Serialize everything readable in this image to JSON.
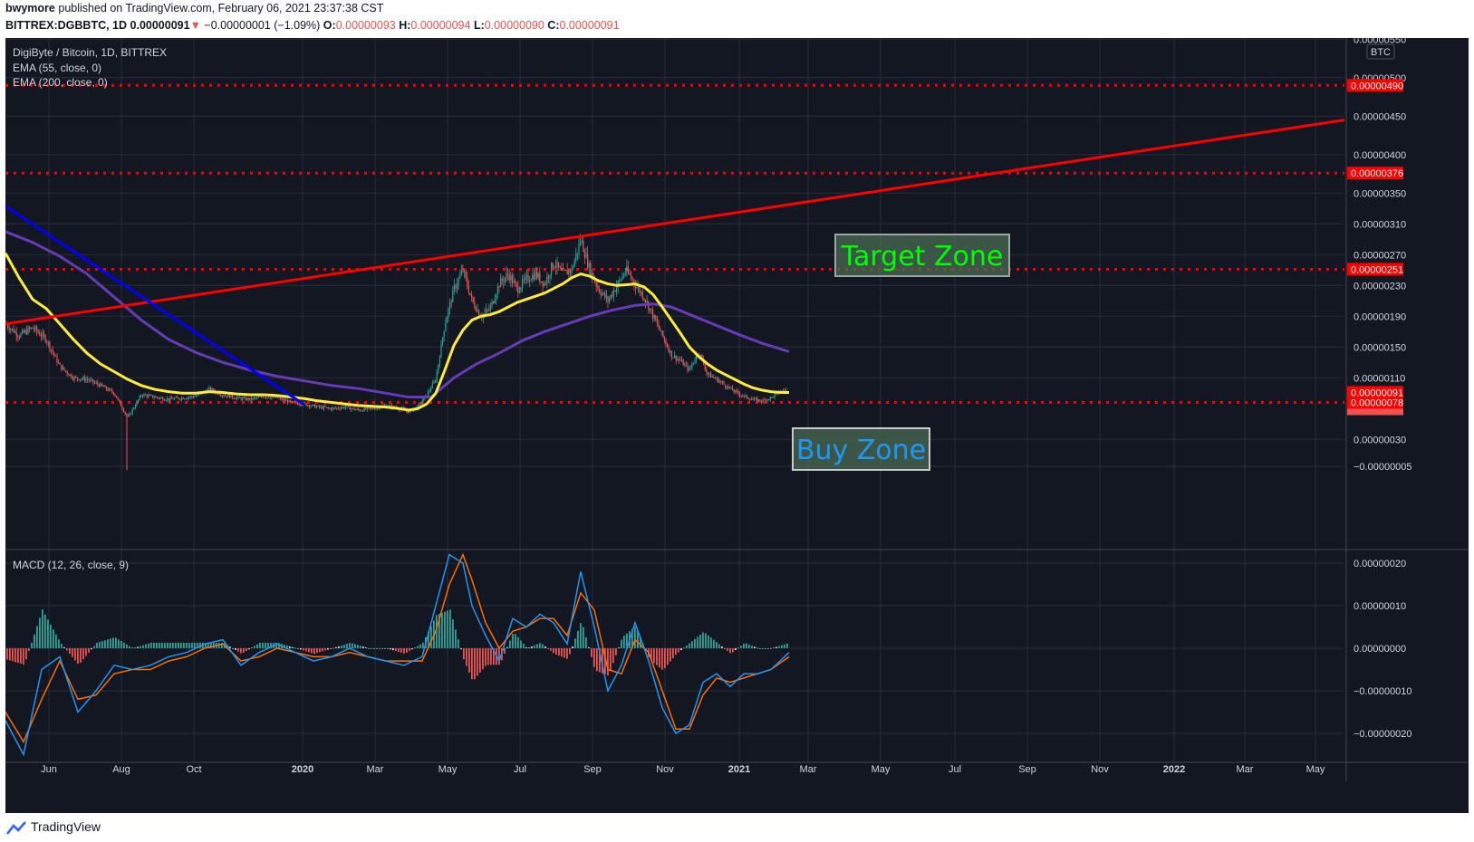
{
  "header": {
    "author": "bwymore",
    "published_text": " published on TradingView.com, February 06, 2021 23:37:38 CST",
    "symbol": "BITTREX:DGBBTC, 1D",
    "last": "0.00000091",
    "change": "−0.00000001 (−1.09%)",
    "o_label": "O:",
    "o_value": "0.00000093",
    "h_label": "H:",
    "h_value": "0.00000094",
    "l_label": "L:",
    "l_value": "0.00000090",
    "c_label": "C:",
    "c_value": "0.00000091"
  },
  "legend": {
    "title": "DigiByte / Bitcoin, 1D, BITTREX",
    "ema55": "EMA (55, close, 0)",
    "ema200": "EMA (200, close, 0)",
    "macd": "MACD (12, 26, close, 9)",
    "currency": "BTC"
  },
  "footer": {
    "brand": "TradingView"
  },
  "colors": {
    "background": "#131722",
    "grid": "#2a2e39",
    "up": "#26a69a",
    "down": "#ef5350",
    "ema55": "#ffeb3b",
    "ema200": "#673ab7",
    "trend_red": "#ff0000",
    "trend_blue": "#0000ff",
    "macd_line": "#2196f3",
    "signal_line": "#ff6d00",
    "target_text": "#00ff00",
    "buy_text": "#2196f3"
  },
  "chart_data": {
    "type": "candlestick",
    "price_axis_ticks": [
      "0.00000550",
      "0.00000500",
      "0.00000450",
      "0.00000400",
      "0.00000350",
      "0.00000310",
      "0.00000270",
      "0.00000230",
      "0.00000190",
      "0.00000150",
      "0.00000110",
      "0.00000030",
      "−0.00000005"
    ],
    "price_axis_top_partial": "0.00",
    "macd_axis_ticks": [
      "0.00000020",
      "0.00000010",
      "0.00000000",
      "−0.00000010",
      "−0.00000020"
    ],
    "time_axis_ticks": [
      "Jun",
      "Aug",
      "Oct",
      "2020",
      "Mar",
      "May",
      "Jul",
      "Sep",
      "Nov",
      "2021",
      "Mar",
      "May",
      "Jul",
      "Sep",
      "Nov",
      "2022",
      "Mar",
      "May"
    ],
    "horizontal_levels": [
      {
        "label": "0.00000490",
        "value": 490
      },
      {
        "label": "0.00000376",
        "value": 376
      },
      {
        "label": "0.00000251",
        "value": 251
      },
      {
        "label": "0.00000078",
        "value": 78
      }
    ],
    "last_price_label": "0.00000091",
    "annotations": [
      {
        "text": "Target Zone"
      },
      {
        "text": "Buy Zone"
      }
    ],
    "price_path_x_y": [
      [
        0,
        180
      ],
      [
        15,
        165
      ],
      [
        30,
        175
      ],
      [
        45,
        160
      ],
      [
        60,
        125
      ],
      [
        75,
        110
      ],
      [
        90,
        108
      ],
      [
        105,
        100
      ],
      [
        120,
        90
      ],
      [
        135,
        58
      ],
      [
        150,
        88
      ],
      [
        165,
        85
      ],
      [
        180,
        82
      ],
      [
        195,
        84
      ],
      [
        210,
        86
      ],
      [
        225,
        95
      ],
      [
        240,
        88
      ],
      [
        255,
        84
      ],
      [
        270,
        82
      ],
      [
        285,
        86
      ],
      [
        300,
        84
      ],
      [
        315,
        78
      ],
      [
        330,
        76
      ],
      [
        345,
        72
      ],
      [
        360,
        70
      ],
      [
        375,
        72
      ],
      [
        390,
        68
      ],
      [
        405,
        70
      ],
      [
        420,
        74
      ],
      [
        435,
        70
      ],
      [
        445,
        66
      ],
      [
        455,
        72
      ],
      [
        465,
        88
      ],
      [
        475,
        108
      ],
      [
        485,
        180
      ],
      [
        495,
        225
      ],
      [
        505,
        250
      ],
      [
        515,
        210
      ],
      [
        525,
        190
      ],
      [
        535,
        200
      ],
      [
        545,
        232
      ],
      [
        555,
        245
      ],
      [
        565,
        225
      ],
      [
        575,
        238
      ],
      [
        585,
        245
      ],
      [
        595,
        232
      ],
      [
        605,
        260
      ],
      [
        615,
        245
      ],
      [
        625,
        250
      ],
      [
        635,
        290
      ],
      [
        645,
        250
      ],
      [
        655,
        225
      ],
      [
        665,
        210
      ],
      [
        675,
        230
      ],
      [
        685,
        250
      ],
      [
        695,
        232
      ],
      [
        705,
        215
      ],
      [
        715,
        190
      ],
      [
        725,
        165
      ],
      [
        735,
        140
      ],
      [
        745,
        132
      ],
      [
        755,
        120
      ],
      [
        765,
        145
      ],
      [
        775,
        115
      ],
      [
        785,
        108
      ],
      [
        795,
        100
      ],
      [
        805,
        92
      ],
      [
        815,
        86
      ],
      [
        825,
        82
      ],
      [
        835,
        80
      ],
      [
        845,
        84
      ],
      [
        855,
        92
      ],
      [
        865,
        94
      ]
    ],
    "ema55_x_y": [
      [
        0,
        272
      ],
      [
        15,
        240
      ],
      [
        30,
        212
      ],
      [
        45,
        200
      ],
      [
        60,
        180
      ],
      [
        75,
        160
      ],
      [
        90,
        142
      ],
      [
        105,
        128
      ],
      [
        120,
        118
      ],
      [
        135,
        108
      ],
      [
        150,
        100
      ],
      [
        165,
        95
      ],
      [
        180,
        92
      ],
      [
        195,
        90
      ],
      [
        210,
        90
      ],
      [
        225,
        92
      ],
      [
        240,
        91
      ],
      [
        255,
        89
      ],
      [
        270,
        88
      ],
      [
        285,
        88
      ],
      [
        300,
        87
      ],
      [
        315,
        85
      ],
      [
        330,
        83
      ],
      [
        345,
        80
      ],
      [
        360,
        78
      ],
      [
        375,
        76
      ],
      [
        390,
        74
      ],
      [
        405,
        73
      ],
      [
        420,
        72
      ],
      [
        435,
        70
      ],
      [
        445,
        68
      ],
      [
        455,
        70
      ],
      [
        465,
        76
      ],
      [
        475,
        90
      ],
      [
        485,
        120
      ],
      [
        495,
        152
      ],
      [
        505,
        172
      ],
      [
        515,
        185
      ],
      [
        525,
        190
      ],
      [
        535,
        192
      ],
      [
        545,
        196
      ],
      [
        555,
        202
      ],
      [
        565,
        208
      ],
      [
        575,
        212
      ],
      [
        585,
        216
      ],
      [
        595,
        220
      ],
      [
        605,
        226
      ],
      [
        615,
        232
      ],
      [
        625,
        240
      ],
      [
        635,
        245
      ],
      [
        645,
        242
      ],
      [
        655,
        236
      ],
      [
        665,
        232
      ],
      [
        675,
        230
      ],
      [
        685,
        231
      ],
      [
        695,
        232
      ],
      [
        705,
        228
      ],
      [
        715,
        218
      ],
      [
        725,
        202
      ],
      [
        735,
        185
      ],
      [
        745,
        168
      ],
      [
        755,
        150
      ],
      [
        765,
        138
      ],
      [
        775,
        128
      ],
      [
        785,
        120
      ],
      [
        795,
        114
      ],
      [
        805,
        108
      ],
      [
        815,
        102
      ],
      [
        825,
        97
      ],
      [
        835,
        94
      ],
      [
        845,
        92
      ],
      [
        855,
        91
      ],
      [
        865,
        91
      ]
    ],
    "ema200_x_y": [
      [
        0,
        300
      ],
      [
        30,
        286
      ],
      [
        60,
        268
      ],
      [
        90,
        245
      ],
      [
        120,
        215
      ],
      [
        150,
        185
      ],
      [
        180,
        160
      ],
      [
        210,
        143
      ],
      [
        240,
        130
      ],
      [
        270,
        120
      ],
      [
        300,
        112
      ],
      [
        330,
        106
      ],
      [
        360,
        100
      ],
      [
        390,
        96
      ],
      [
        420,
        90
      ],
      [
        445,
        85
      ],
      [
        470,
        85
      ],
      [
        495,
        110
      ],
      [
        520,
        128
      ],
      [
        545,
        142
      ],
      [
        570,
        158
      ],
      [
        595,
        170
      ],
      [
        620,
        180
      ],
      [
        645,
        190
      ],
      [
        670,
        198
      ],
      [
        695,
        204
      ],
      [
        715,
        206
      ],
      [
        735,
        202
      ],
      [
        760,
        190
      ],
      [
        785,
        178
      ],
      [
        810,
        166
      ],
      [
        835,
        155
      ],
      [
        865,
        144
      ]
    ],
    "macd_x_y": [
      [
        0,
        -1.7e-07
      ],
      [
        20,
        -2.5e-07
      ],
      [
        40,
        -5e-08
      ],
      [
        60,
        -2e-08
      ],
      [
        80,
        -1.5e-07
      ],
      [
        100,
        -1e-07
      ],
      [
        120,
        -4e-08
      ],
      [
        140,
        -5e-08
      ],
      [
        160,
        -4e-08
      ],
      [
        180,
        -2e-08
      ],
      [
        200,
        -1e-08
      ],
      [
        220,
        1e-08
      ],
      [
        240,
        2e-08
      ],
      [
        260,
        -4e-08
      ],
      [
        280,
        -1e-08
      ],
      [
        300,
        1e-08
      ],
      [
        320,
        -1e-08
      ],
      [
        340,
        -3e-08
      ],
      [
        360,
        -2e-08
      ],
      [
        380,
        0.0
      ],
      [
        400,
        -2e-08
      ],
      [
        420,
        -3e-08
      ],
      [
        440,
        -4e-08
      ],
      [
        460,
        -2e-08
      ],
      [
        475,
        1e-07
      ],
      [
        490,
        2.2e-07
      ],
      [
        505,
        2e-07
      ],
      [
        515,
        1e-07
      ],
      [
        530,
        3e-08
      ],
      [
        545,
        -3e-08
      ],
      [
        560,
        7e-08
      ],
      [
        575,
        5e-08
      ],
      [
        590,
        8e-08
      ],
      [
        605,
        6e-08
      ],
      [
        620,
        1e-08
      ],
      [
        635,
        1.8e-07
      ],
      [
        650,
        5e-08
      ],
      [
        665,
        -1e-07
      ],
      [
        680,
        -4e-08
      ],
      [
        695,
        6e-08
      ],
      [
        710,
        -3e-08
      ],
      [
        725,
        -1.4e-07
      ],
      [
        740,
        -2e-07
      ],
      [
        755,
        -1.8e-07
      ],
      [
        770,
        -8e-08
      ],
      [
        785,
        -6e-08
      ],
      [
        800,
        -9e-08
      ],
      [
        815,
        -6e-08
      ],
      [
        830,
        -6e-08
      ],
      [
        845,
        -5e-08
      ],
      [
        865,
        -1e-08
      ]
    ],
    "signal_x_y": [
      [
        0,
        -1.5e-07
      ],
      [
        20,
        -2.2e-07
      ],
      [
        40,
        -1.2e-07
      ],
      [
        60,
        -3e-08
      ],
      [
        80,
        -1.2e-07
      ],
      [
        100,
        -1.1e-07
      ],
      [
        120,
        -6e-08
      ],
      [
        140,
        -5e-08
      ],
      [
        160,
        -5e-08
      ],
      [
        180,
        -3e-08
      ],
      [
        200,
        -2e-08
      ],
      [
        220,
        0.0
      ],
      [
        240,
        1e-08
      ],
      [
        260,
        -3e-08
      ],
      [
        280,
        -2e-08
      ],
      [
        300,
        0.0
      ],
      [
        320,
        -1e-08
      ],
      [
        340,
        -2e-08
      ],
      [
        360,
        -2e-08
      ],
      [
        380,
        -1e-08
      ],
      [
        400,
        -2e-08
      ],
      [
        420,
        -3e-08
      ],
      [
        440,
        -3e-08
      ],
      [
        460,
        -3e-08
      ],
      [
        475,
        4e-08
      ],
      [
        490,
        1.5e-07
      ],
      [
        505,
        2.2e-07
      ],
      [
        515,
        1.6e-07
      ],
      [
        530,
        6e-08
      ],
      [
        545,
        0.0
      ],
      [
        560,
        4e-08
      ],
      [
        575,
        5e-08
      ],
      [
        590,
        7e-08
      ],
      [
        605,
        7e-08
      ],
      [
        620,
        3e-08
      ],
      [
        635,
        1.3e-07
      ],
      [
        650,
        9e-08
      ],
      [
        665,
        -5e-08
      ],
      [
        680,
        -6e-08
      ],
      [
        695,
        2e-08
      ],
      [
        710,
        -1e-08
      ],
      [
        725,
        -1e-07
      ],
      [
        740,
        -1.9e-07
      ],
      [
        755,
        -1.9e-07
      ],
      [
        770,
        -1.1e-07
      ],
      [
        785,
        -7e-08
      ],
      [
        800,
        -8e-08
      ],
      [
        815,
        -7e-08
      ],
      [
        830,
        -6e-08
      ],
      [
        845,
        -5e-08
      ],
      [
        865,
        -2e-08
      ]
    ]
  }
}
